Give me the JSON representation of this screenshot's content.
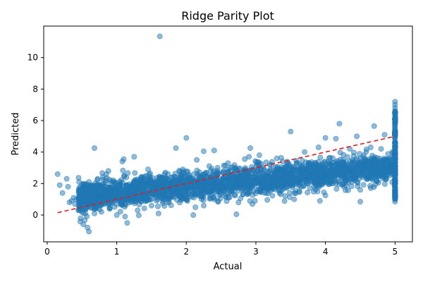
{
  "chart_data": {
    "type": "scatter",
    "title": "Ridge Parity Plot",
    "xlabel": "Actual",
    "ylabel": "Predicted",
    "xlim": [
      -0.05,
      5.25
    ],
    "ylim": [
      -1.7,
      12.0
    ],
    "xticks": [
      0,
      1,
      2,
      3,
      4,
      5
    ],
    "yticks": [
      0,
      2,
      4,
      6,
      8,
      10
    ],
    "grid": false,
    "legend": "none",
    "reference_line": {
      "style": "dashed",
      "color": "#e31a1c",
      "x": [
        0.15,
        5.0
      ],
      "y": [
        0.15,
        5.0
      ]
    },
    "series": [
      {
        "color": "#1f77b4",
        "points": [
          [
            0.15,
            2.6
          ],
          [
            0.18,
            1.9
          ],
          [
            0.22,
            1.4
          ],
          [
            0.28,
            2.3
          ],
          [
            0.3,
            1.8
          ],
          [
            0.32,
            0.8
          ],
          [
            0.35,
            0.9
          ],
          [
            0.38,
            1.1
          ],
          [
            0.4,
            0.7
          ],
          [
            0.42,
            1.0
          ],
          [
            0.45,
            0.3
          ],
          [
            0.46,
            1.5
          ],
          [
            0.48,
            -0.2
          ],
          [
            0.5,
            0.2
          ],
          [
            0.5,
            1.2
          ],
          [
            0.52,
            -0.6
          ],
          [
            0.55,
            0.8
          ],
          [
            0.56,
            1.6
          ],
          [
            0.58,
            -0.8
          ],
          [
            0.6,
            -1.05
          ],
          [
            0.6,
            2.1
          ],
          [
            0.62,
            0.5
          ],
          [
            0.65,
            1.3
          ],
          [
            0.68,
            0.1
          ],
          [
            0.68,
            4.25
          ],
          [
            0.7,
            1.9
          ],
          [
            0.72,
            0.6
          ],
          [
            0.75,
            1.4
          ],
          [
            0.78,
            0.2
          ],
          [
            0.8,
            2.4
          ],
          [
            0.82,
            1.0
          ],
          [
            0.85,
            2.6
          ],
          [
            0.88,
            2.8
          ],
          [
            0.9,
            0.4
          ],
          [
            0.92,
            1.7
          ],
          [
            0.95,
            2.2
          ],
          [
            1.0,
            0.0
          ],
          [
            1.05,
            1.1
          ],
          [
            1.08,
            3.4
          ],
          [
            1.1,
            3.55
          ],
          [
            1.12,
            -0.1
          ],
          [
            1.15,
            -0.5
          ],
          [
            1.2,
            1.8
          ],
          [
            1.25,
            3.7
          ],
          [
            1.3,
            0.3
          ],
          [
            1.35,
            2.4
          ],
          [
            1.4,
            1.2
          ],
          [
            1.45,
            2.9
          ],
          [
            1.5,
            0.6
          ],
          [
            1.55,
            2.1
          ],
          [
            1.6,
            0.1
          ],
          [
            1.62,
            11.35
          ],
          [
            1.65,
            1.5
          ],
          [
            1.7,
            2.7
          ],
          [
            1.75,
            1.0
          ],
          [
            1.8,
            2.4
          ],
          [
            1.85,
            4.25
          ],
          [
            1.9,
            1.3
          ],
          [
            1.95,
            2.9
          ],
          [
            2.0,
            4.9
          ],
          [
            2.05,
            1.9
          ],
          [
            2.1,
            0.0
          ],
          [
            2.15,
            3.5
          ],
          [
            2.2,
            2.2
          ],
          [
            2.25,
            4.05
          ],
          [
            2.25,
            0.6
          ],
          [
            2.3,
            1.5
          ],
          [
            2.35,
            2.8
          ],
          [
            2.4,
            4.1
          ],
          [
            2.45,
            3.0
          ],
          [
            2.5,
            1.4
          ],
          [
            2.55,
            2.5
          ],
          [
            2.6,
            3.3
          ],
          [
            2.65,
            2.0
          ],
          [
            2.7,
            3.0
          ],
          [
            2.72,
            0.05
          ],
          [
            2.75,
            0.8
          ],
          [
            2.8,
            1.6
          ],
          [
            2.85,
            2.6
          ],
          [
            2.9,
            3.7
          ],
          [
            2.92,
            4.25
          ],
          [
            2.95,
            0.7
          ],
          [
            3.0,
            2.1
          ],
          [
            3.05,
            3.8
          ],
          [
            3.1,
            2.6
          ],
          [
            3.15,
            1.4
          ],
          [
            3.2,
            3.2
          ],
          [
            3.25,
            2.2
          ],
          [
            3.3,
            3.6
          ],
          [
            3.35,
            1.6
          ],
          [
            3.4,
            2.4
          ],
          [
            3.45,
            3.4
          ],
          [
            3.5,
            5.3
          ],
          [
            3.55,
            1.0
          ],
          [
            3.6,
            2.8
          ],
          [
            3.65,
            1.8
          ],
          [
            3.7,
            4.0
          ],
          [
            3.75,
            3.0
          ],
          [
            3.8,
            2.2
          ],
          [
            3.85,
            3.3
          ],
          [
            3.9,
            4.3
          ],
          [
            3.92,
            0.9
          ],
          [
            3.95,
            2.0
          ],
          [
            4.0,
            4.9
          ],
          [
            4.0,
            1.25
          ],
          [
            4.05,
            3.2
          ],
          [
            4.1,
            2.4
          ],
          [
            4.15,
            4.85
          ],
          [
            4.2,
            5.8
          ],
          [
            4.25,
            3.5
          ],
          [
            4.3,
            1.9
          ],
          [
            4.35,
            4.2
          ],
          [
            4.4,
            2.5
          ],
          [
            4.45,
            5.0
          ],
          [
            4.5,
            1.6
          ],
          [
            4.5,
            0.85
          ],
          [
            4.55,
            3.8
          ],
          [
            4.6,
            2.3
          ],
          [
            4.65,
            4.3
          ],
          [
            4.7,
            3.1
          ],
          [
            4.7,
            5.65
          ],
          [
            4.75,
            2.7
          ],
          [
            4.8,
            4.2
          ],
          [
            4.85,
            5.1
          ],
          [
            4.9,
            3.4
          ],
          [
            4.95,
            2.7
          ],
          [
            5.0,
            7.2
          ],
          [
            5.0,
            7.0
          ],
          [
            5.0,
            6.8
          ],
          [
            5.0,
            6.6
          ],
          [
            5.0,
            6.3
          ],
          [
            5.0,
            6.0
          ],
          [
            5.0,
            5.8
          ],
          [
            5.0,
            5.5
          ],
          [
            5.0,
            5.2
          ],
          [
            5.0,
            4.9
          ],
          [
            5.0,
            4.6
          ],
          [
            5.0,
            4.3
          ],
          [
            5.0,
            4.0
          ],
          [
            5.0,
            3.7
          ],
          [
            5.0,
            3.4
          ],
          [
            5.0,
            3.1
          ],
          [
            5.0,
            2.8
          ],
          [
            5.0,
            2.5
          ],
          [
            5.0,
            2.2
          ],
          [
            5.0,
            1.9
          ],
          [
            5.0,
            1.6
          ],
          [
            5.0,
            1.3
          ],
          [
            5.0,
            1.0
          ],
          [
            5.0,
            0.85
          ]
        ],
        "cloud": {
          "center_slope": 0.42,
          "center_intercept": 0.95,
          "spread": 0.45,
          "x_range": [
            0.45,
            5.0
          ]
        }
      }
    ]
  }
}
